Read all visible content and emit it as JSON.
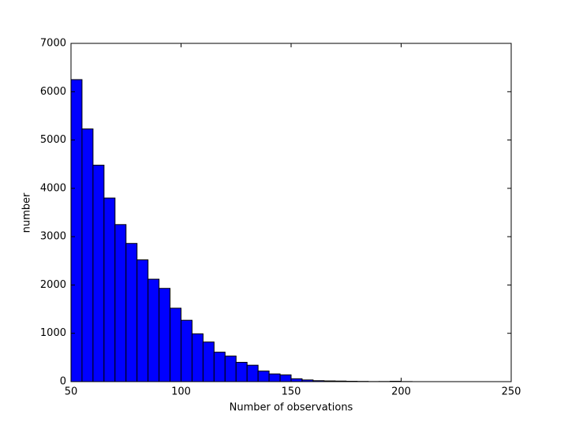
{
  "chart_data": {
    "type": "histogram",
    "xlabel": "Number of observations",
    "ylabel": "number",
    "bins": [
      50,
      55,
      60,
      65,
      70,
      75,
      80,
      85,
      90,
      95,
      100,
      105,
      110,
      115,
      120,
      125,
      130,
      135,
      140,
      145,
      150,
      155,
      160,
      165,
      170,
      175,
      180,
      185,
      190,
      195,
      200,
      205
    ],
    "values": [
      6250,
      5230,
      4480,
      3800,
      3250,
      2860,
      2520,
      2120,
      1930,
      1520,
      1270,
      990,
      820,
      610,
      530,
      400,
      340,
      220,
      160,
      140,
      60,
      35,
      20,
      15,
      12,
      8,
      5,
      2,
      3,
      8,
      2
    ],
    "color": "#0000ff",
    "xlim": [
      50,
      250
    ],
    "xticks": [
      50,
      100,
      150,
      200,
      250
    ],
    "ylim": [
      0,
      7000
    ],
    "yticks": [
      0,
      1000,
      2000,
      3000,
      4000,
      5000,
      6000,
      7000
    ]
  }
}
